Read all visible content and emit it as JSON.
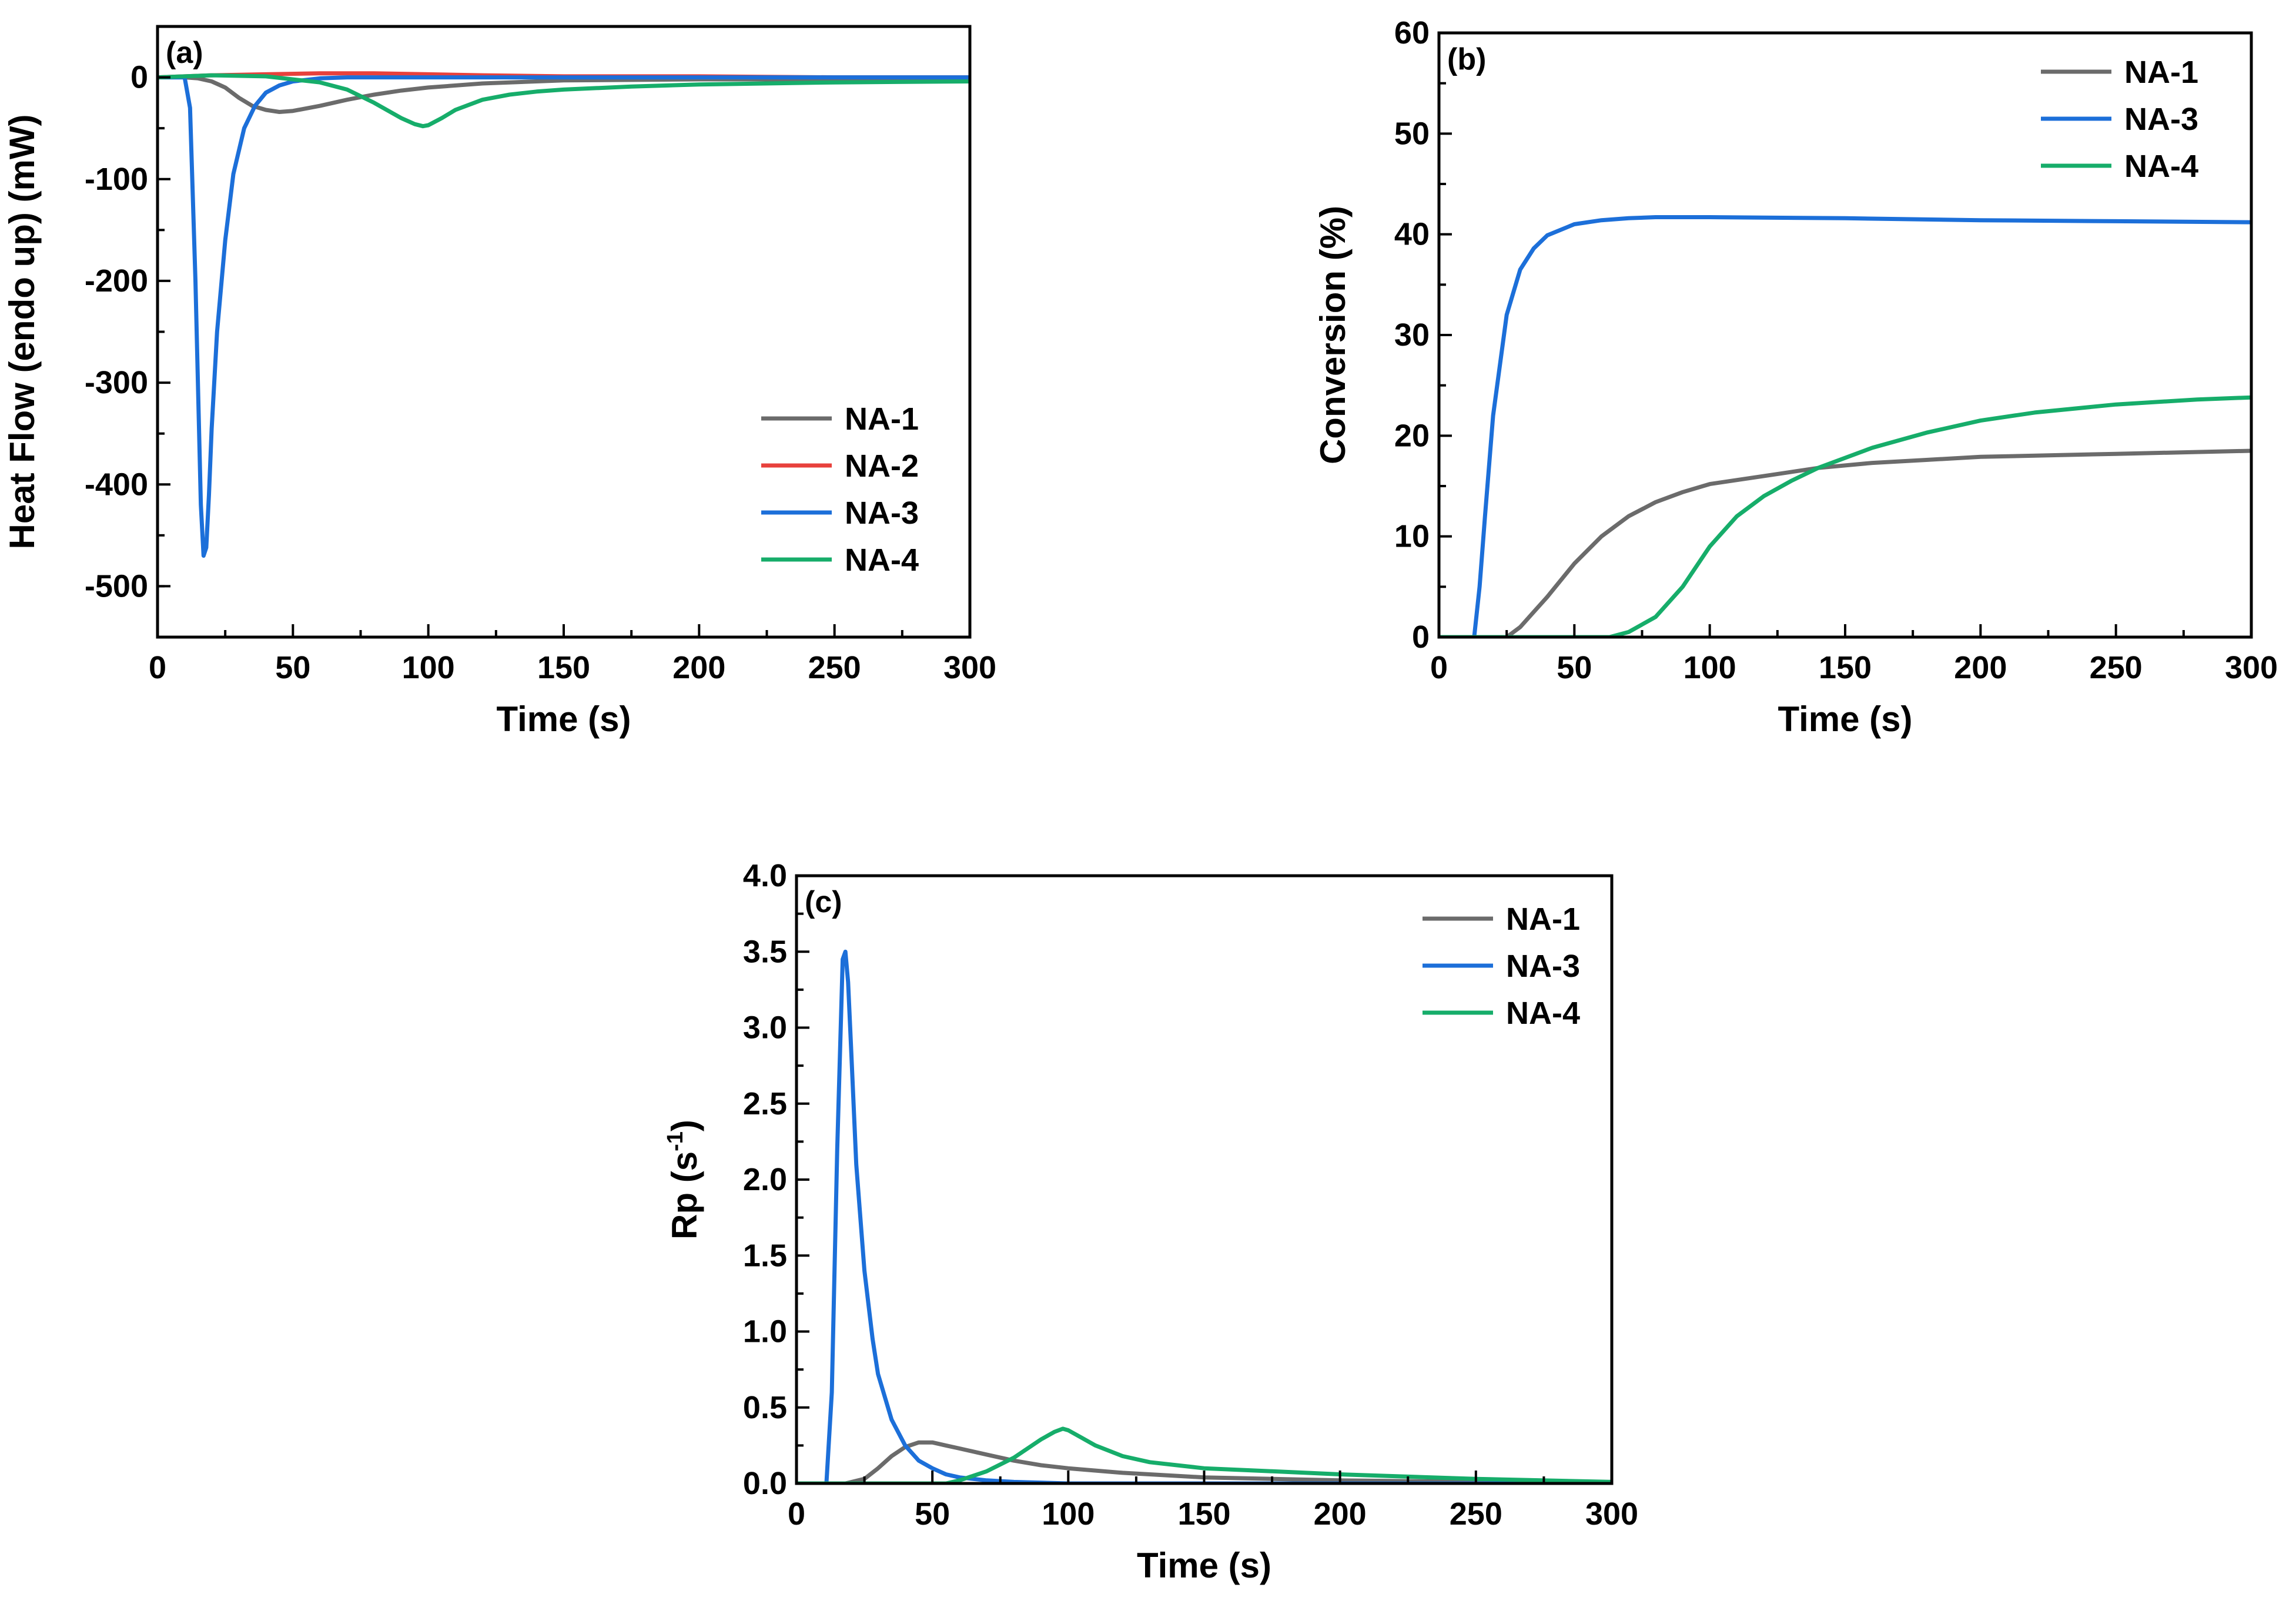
{
  "colors": {
    "NA-1": "#6b6b6b",
    "NA-2": "#e8413c",
    "NA-3": "#1c6fd9",
    "NA-4": "#16ad6a"
  },
  "chart_data": [
    {
      "id": "a",
      "type": "line",
      "panel_label": "(a)",
      "xlabel": "Time (s)",
      "ylabel": "Heat Flow (endo up) (mW)",
      "xlim": [
        0,
        300
      ],
      "ylim": [
        -550,
        50
      ],
      "xticks": [
        "0",
        "50",
        "100",
        "150",
        "200",
        "250",
        "300"
      ],
      "yticks": [
        "0",
        "-100",
        "-200",
        "-300",
        "-400",
        "-500"
      ],
      "legend_position": "bottom-right",
      "series": [
        {
          "name": "NA-1",
          "x": [
            0,
            10,
            15,
            20,
            25,
            30,
            35,
            40,
            45,
            50,
            60,
            70,
            80,
            90,
            100,
            120,
            150,
            200,
            250,
            300
          ],
          "y": [
            0,
            0,
            -1,
            -4,
            -10,
            -20,
            -28,
            -32,
            -34,
            -33,
            -28,
            -22,
            -17,
            -13,
            -10,
            -6,
            -3,
            -2,
            -2,
            -2
          ]
        },
        {
          "name": "NA-2",
          "x": [
            0,
            20,
            40,
            60,
            80,
            100,
            120,
            150,
            200,
            250,
            300
          ],
          "y": [
            0,
            2,
            3,
            4,
            4,
            3,
            2,
            1,
            1,
            0,
            0
          ]
        },
        {
          "name": "NA-3",
          "x": [
            0,
            10,
            12,
            14,
            16,
            17,
            18,
            19,
            20,
            22,
            25,
            28,
            32,
            36,
            40,
            45,
            50,
            60,
            70,
            80,
            100,
            150,
            200,
            300
          ],
          "y": [
            0,
            0,
            -30,
            -200,
            -420,
            -470,
            -462,
            -410,
            -345,
            -250,
            -160,
            -95,
            -50,
            -28,
            -15,
            -8,
            -4,
            -1,
            0,
            0,
            0,
            0,
            0,
            0
          ]
        },
        {
          "name": "NA-4",
          "x": [
            0,
            20,
            40,
            60,
            70,
            80,
            90,
            95,
            98,
            100,
            105,
            110,
            120,
            130,
            140,
            150,
            175,
            200,
            250,
            300
          ],
          "y": [
            0,
            2,
            1,
            -5,
            -12,
            -25,
            -40,
            -46,
            -48,
            -47,
            -40,
            -32,
            -22,
            -17,
            -14,
            -12,
            -9,
            -7,
            -5,
            -4
          ]
        }
      ]
    },
    {
      "id": "b",
      "type": "line",
      "panel_label": "(b)",
      "xlabel": "Time (s)",
      "ylabel": "Conversion (%)",
      "xlim": [
        0,
        300
      ],
      "ylim": [
        0,
        60
      ],
      "xticks": [
        "0",
        "50",
        "100",
        "150",
        "200",
        "250",
        "300"
      ],
      "yticks": [
        "0",
        "10",
        "20",
        "30",
        "40",
        "50",
        "60"
      ],
      "legend_position": "top-right",
      "series": [
        {
          "name": "NA-1",
          "x": [
            0,
            25,
            30,
            35,
            40,
            50,
            60,
            70,
            80,
            90,
            100,
            120,
            140,
            160,
            180,
            200,
            250,
            300
          ],
          "y": [
            0,
            0,
            1,
            2.5,
            4,
            7.3,
            10,
            12,
            13.4,
            14.4,
            15.2,
            16,
            16.8,
            17.3,
            17.6,
            17.9,
            18.2,
            18.5
          ]
        },
        {
          "name": "NA-3",
          "x": [
            0,
            13,
            15,
            17,
            20,
            25,
            30,
            35,
            40,
            50,
            60,
            70,
            80,
            100,
            150,
            200,
            250,
            300
          ],
          "y": [
            0,
            0,
            5,
            12,
            22,
            32,
            36.5,
            38.6,
            39.9,
            41,
            41.4,
            41.6,
            41.7,
            41.7,
            41.6,
            41.4,
            41.3,
            41.2
          ]
        },
        {
          "name": "NA-4",
          "x": [
            0,
            63,
            70,
            80,
            90,
            100,
            110,
            120,
            130,
            140,
            160,
            180,
            200,
            220,
            250,
            280,
            300
          ],
          "y": [
            0,
            0,
            0.5,
            2,
            5,
            9,
            12,
            14,
            15.5,
            16.8,
            18.8,
            20.3,
            21.5,
            22.3,
            23.1,
            23.6,
            23.8
          ]
        }
      ]
    },
    {
      "id": "c",
      "type": "line",
      "panel_label": "(c)",
      "xlabel": "Time (s)",
      "ylabel": "Rp (s",
      "ylabel_sup": "-1",
      "ylabel_end": ")",
      "xlim": [
        0,
        300
      ],
      "ylim": [
        0,
        4.0
      ],
      "xticks": [
        "0",
        "50",
        "100",
        "150",
        "200",
        "250",
        "300"
      ],
      "yticks": [
        "0.0",
        "0.5",
        "1.0",
        "1.5",
        "2.0",
        "2.5",
        "3.0",
        "3.5",
        "4.0"
      ],
      "legend_position": "top-right",
      "series": [
        {
          "name": "NA-1",
          "x": [
            0,
            18,
            25,
            30,
            35,
            40,
            45,
            50,
            55,
            60,
            70,
            80,
            90,
            100,
            120,
            150,
            200,
            250,
            300
          ],
          "y": [
            0,
            0,
            0.03,
            0.1,
            0.18,
            0.24,
            0.27,
            0.27,
            0.25,
            0.23,
            0.19,
            0.15,
            0.12,
            0.1,
            0.07,
            0.04,
            0.02,
            0.01,
            0
          ]
        },
        {
          "name": "NA-3",
          "x": [
            0,
            11,
            13,
            15,
            17,
            18,
            19,
            20,
            22,
            25,
            28,
            30,
            35,
            40,
            45,
            50,
            55,
            60,
            70,
            80,
            100,
            300
          ],
          "y": [
            0,
            0,
            0.6,
            2.2,
            3.45,
            3.5,
            3.3,
            2.9,
            2.1,
            1.4,
            0.95,
            0.72,
            0.42,
            0.25,
            0.15,
            0.1,
            0.06,
            0.04,
            0.02,
            0.01,
            0,
            0
          ]
        },
        {
          "name": "NA-4",
          "x": [
            0,
            55,
            60,
            70,
            80,
            90,
            95,
            98,
            100,
            105,
            110,
            120,
            130,
            140,
            150,
            175,
            200,
            250,
            300
          ],
          "y": [
            0,
            0,
            0.02,
            0.08,
            0.17,
            0.29,
            0.34,
            0.36,
            0.35,
            0.3,
            0.25,
            0.18,
            0.14,
            0.12,
            0.1,
            0.08,
            0.06,
            0.03,
            0.01
          ]
        }
      ]
    }
  ]
}
